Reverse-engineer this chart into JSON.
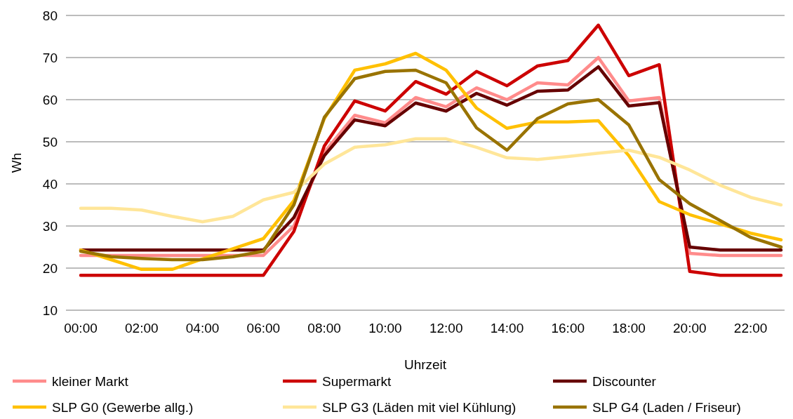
{
  "chart_data": {
    "type": "line",
    "xlabel": "Uhrzeit",
    "ylabel": "Wh",
    "categories": [
      "00:00",
      null,
      "02:00",
      null,
      "04:00",
      null,
      "06:00",
      null,
      "08:00",
      null,
      "10:00",
      null,
      "12:00",
      null,
      "14:00",
      null,
      "16:00",
      null,
      "18:00",
      null,
      "20:00",
      null,
      "22:00",
      null
    ],
    "series": [
      {
        "name": "kleiner Markt",
        "color": "#ff8b8b",
        "values": [
          23,
          23,
          23,
          23,
          23,
          23,
          23,
          30,
          47.5,
          56.3,
          54.5,
          60.5,
          58.3,
          62.8,
          60,
          64,
          63.5,
          70,
          59.7,
          60.5,
          23.5,
          23,
          23,
          23
        ]
      },
      {
        "name": "Supermarkt",
        "color": "#cc0000",
        "values": [
          18.3,
          18.3,
          18.3,
          18.3,
          18.3,
          18.3,
          18.3,
          28.7,
          49,
          59.7,
          57.3,
          64.3,
          61.3,
          66.7,
          63.3,
          68,
          69.3,
          77.7,
          65.7,
          68.3,
          19.2,
          18.3,
          18.3,
          18.3
        ]
      },
      {
        "name": "Discounter",
        "color": "#660000",
        "values": [
          24.3,
          24.3,
          24.3,
          24.3,
          24.3,
          24.3,
          24.3,
          32,
          46.7,
          55.2,
          53.8,
          59.2,
          57.3,
          61.5,
          58.7,
          62,
          62.3,
          67.8,
          58.5,
          59.3,
          25,
          24.3,
          24.3,
          24.3
        ]
      },
      {
        "name": "SLP G0 (Gewerbe allg.)",
        "color": "#ffc000",
        "values": [
          24.3,
          22,
          19.7,
          19.7,
          22.2,
          24.6,
          27,
          36,
          55.5,
          67,
          68.5,
          71,
          67,
          58,
          53.2,
          54.7,
          54.7,
          55,
          46.7,
          35.8,
          32.7,
          30.5,
          28.3,
          26.7
        ]
      },
      {
        "name": "SLP G3 (Läden mit viel Kühlung)",
        "color": "#ffe699",
        "values": [
          34.2,
          34.2,
          33.8,
          32.3,
          31,
          32.3,
          36.2,
          38,
          44.7,
          48.7,
          49.3,
          50.7,
          50.7,
          48.7,
          46.2,
          45.8,
          46.5,
          47.3,
          48,
          46.3,
          43.3,
          39.7,
          36.8,
          35
        ]
      },
      {
        "name": "SLP G4 (Laden / Friseur)",
        "color": "#997300",
        "values": [
          24,
          22.7,
          22.3,
          22,
          22,
          22.7,
          24,
          35,
          55.8,
          65,
          66.7,
          67,
          64,
          53.3,
          48,
          55.5,
          59,
          60,
          54,
          41,
          35.3,
          31.3,
          27.3,
          25
        ]
      }
    ],
    "ylim": [
      10,
      80
    ],
    "yticks": [
      10,
      20,
      30,
      40,
      50,
      60,
      70,
      80
    ],
    "grid": "y",
    "legend": "bottom",
    "marker": "none",
    "line_style": "solid"
  }
}
